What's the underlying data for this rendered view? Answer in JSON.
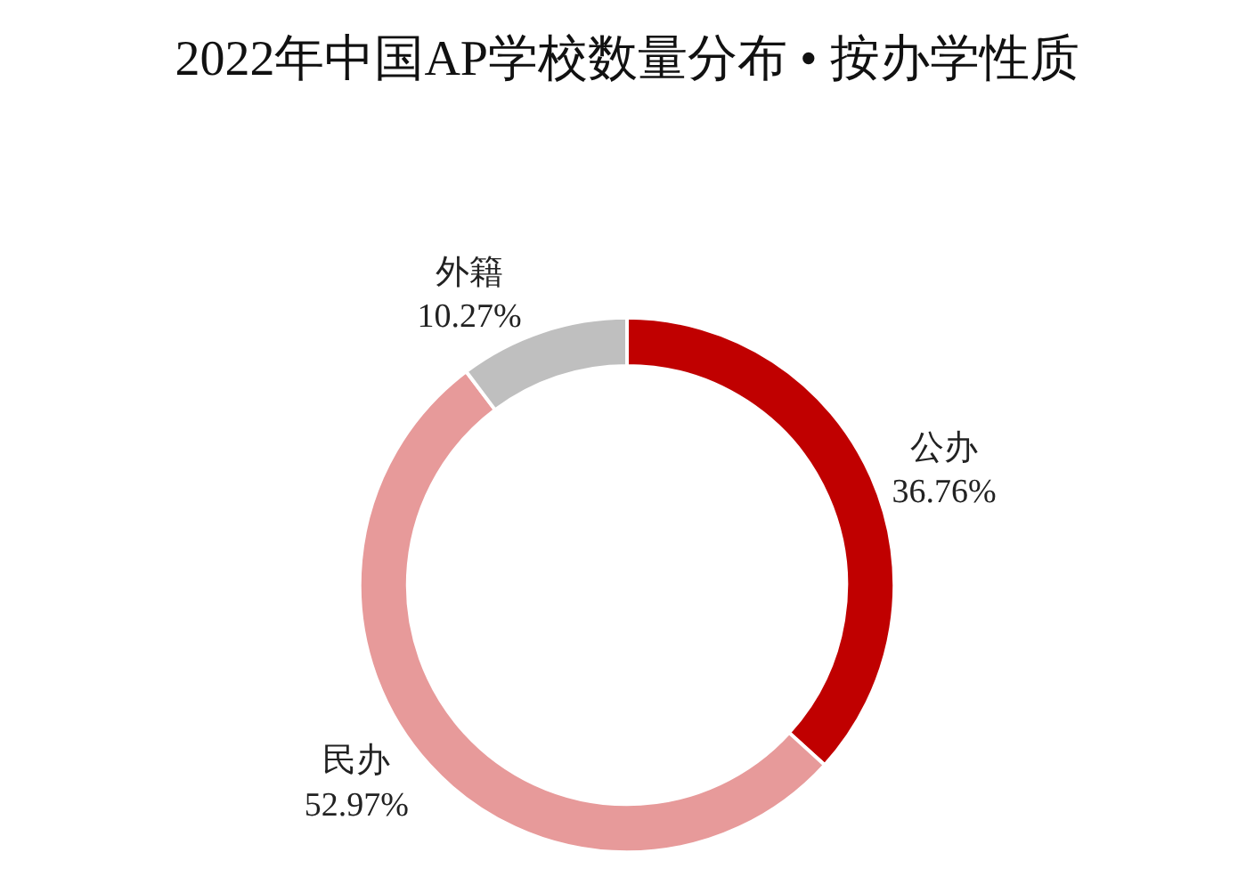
{
  "chart_data": {
    "type": "donut",
    "title": "2022年中国AP学校数量分布 • 按办学性质",
    "categories": [
      "公办",
      "民办",
      "外籍"
    ],
    "values": [
      36.76,
      52.97,
      10.27
    ],
    "colors": [
      "#c00000",
      "#e79a9a",
      "#bfbfbf"
    ],
    "value_labels": [
      "36.76%",
      "52.97%",
      "10.27%"
    ],
    "legend": false
  }
}
